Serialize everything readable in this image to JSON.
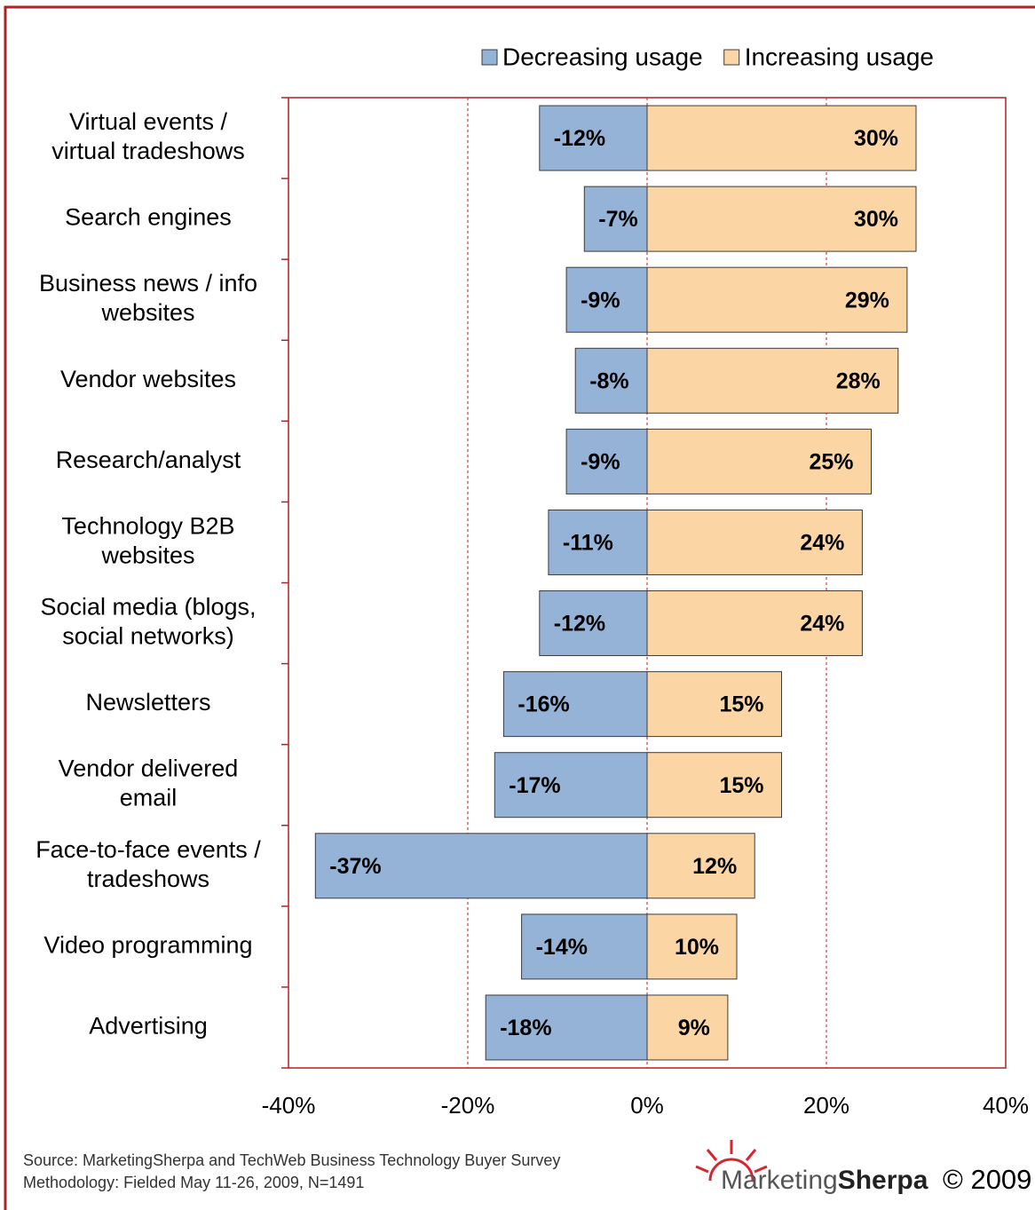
{
  "chart_data": {
    "type": "diverging-bar",
    "categories": [
      "Virtual events /\nvirtual tradeshows",
      "Search engines",
      "Business news / info\nwebsites",
      "Vendor websites",
      "Research/analyst",
      "Technology B2B\nwebsites",
      "Social media (blogs,\nsocial networks)",
      "Newsletters",
      "Vendor delivered\nemail",
      "Face-to-face events /\ntradeshows",
      "Video programming",
      "Advertising"
    ],
    "series": [
      {
        "name": "Decreasing usage",
        "color": "#95b3d7",
        "values": [
          -12,
          -7,
          -9,
          -8,
          -9,
          -11,
          -12,
          -16,
          -17,
          -37,
          -14,
          -18
        ],
        "value_labels": [
          "-12%",
          "-7%",
          "-9%",
          "-8%",
          "-9%",
          "-11%",
          "-12%",
          "-16%",
          "-17%",
          "-37%",
          "-14%",
          "-18%"
        ]
      },
      {
        "name": "Increasing usage",
        "color": "#fcd5a5",
        "values": [
          30,
          30,
          29,
          28,
          25,
          24,
          24,
          15,
          15,
          12,
          10,
          9
        ],
        "value_labels": [
          "30%",
          "30%",
          "29%",
          "28%",
          "25%",
          "24%",
          "24%",
          "15%",
          "15%",
          "12%",
          "10%",
          "9%"
        ]
      }
    ],
    "xlim": [
      -40,
      40
    ],
    "xticks": [
      {
        "value": -40,
        "label": "-40%"
      },
      {
        "value": -20,
        "label": "-20%"
      },
      {
        "value": 0,
        "label": "0%"
      },
      {
        "value": 20,
        "label": "20%"
      },
      {
        "value": 40,
        "label": "40%"
      }
    ],
    "grid": true,
    "legend": "top",
    "source": [
      "Source: MarketingSherpa and TechWeb Business Technology Buyer Survey",
      "Methodology: Fielded May 11-26, 2009, N=1491"
    ],
    "logo": [
      "Marketing",
      "Sherpa"
    ],
    "copyright": "© 2009"
  }
}
